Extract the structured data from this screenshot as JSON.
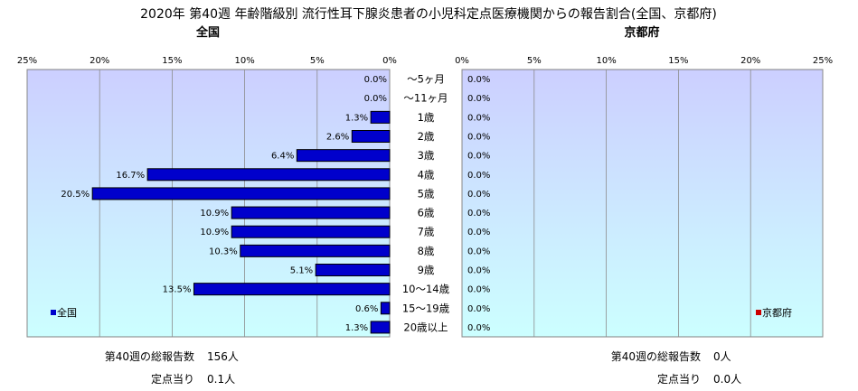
{
  "title": "2020年 第40週 年齢階級別 流行性耳下腺炎患者の小児科定点医療機関からの報告割合(全国、京都府)",
  "colors": {
    "national_bar": "#0000cc",
    "kyoto_bar": "#cc0000",
    "plot_top": "#cccfff",
    "plot_bottom": "#ccffff"
  },
  "chart_data": [
    {
      "type": "bar",
      "orientation": "horizontal",
      "direction": "right-to-left",
      "title": "全国",
      "categories": [
        "～5ヶ月",
        "～11ヶ月",
        "1歳",
        "2歳",
        "3歳",
        "4歳",
        "5歳",
        "6歳",
        "7歳",
        "8歳",
        "9歳",
        "10～14歳",
        "15～19歳",
        "20歳以上"
      ],
      "series": [
        {
          "name": "全国",
          "values": [
            0.0,
            0.0,
            1.3,
            2.6,
            6.4,
            16.7,
            20.5,
            10.9,
            10.9,
            10.3,
            5.1,
            13.5,
            0.6,
            1.3
          ],
          "labels": [
            "0.0%",
            "0.0%",
            "1.3%",
            "2.6%",
            "6.4%",
            "16.7%",
            "20.5%",
            "10.9%",
            "10.9%",
            "10.3%",
            "5.1%",
            "13.5%",
            "0.6%",
            "1.3%"
          ]
        }
      ],
      "xlim": [
        0,
        25
      ],
      "xticks": [
        "0%",
        "5%",
        "10%",
        "15%",
        "20%",
        "25%"
      ],
      "grid": true,
      "legend": "bottom-left"
    },
    {
      "type": "bar",
      "orientation": "horizontal",
      "direction": "left-to-right",
      "title": "京都府",
      "categories": [
        "～5ヶ月",
        "～11ヶ月",
        "1歳",
        "2歳",
        "3歳",
        "4歳",
        "5歳",
        "6歳",
        "7歳",
        "8歳",
        "9歳",
        "10～14歳",
        "15～19歳",
        "20歳以上"
      ],
      "series": [
        {
          "name": "京都府",
          "values": [
            0.0,
            0.0,
            0.0,
            0.0,
            0.0,
            0.0,
            0.0,
            0.0,
            0.0,
            0.0,
            0.0,
            0.0,
            0.0,
            0.0
          ],
          "labels": [
            "0.0%",
            "0.0%",
            "0.0%",
            "0.0%",
            "0.0%",
            "0.0%",
            "0.0%",
            "0.0%",
            "0.0%",
            "0.0%",
            "0.0%",
            "0.0%",
            "0.0%",
            "0.0%"
          ]
        }
      ],
      "xlim": [
        0,
        25
      ],
      "xticks": [
        "0%",
        "5%",
        "10%",
        "15%",
        "20%",
        "25%"
      ],
      "grid": true,
      "legend": "bottom-right"
    }
  ],
  "footer": {
    "national": {
      "total_label": "第40週の総報告数",
      "total_value": "156人",
      "per_label": "定点当り",
      "per_value": "0.1人"
    },
    "kyoto": {
      "total_label": "第40週の総報告数",
      "total_value": "0人",
      "per_label": "定点当り",
      "per_value": "0.0人"
    }
  }
}
